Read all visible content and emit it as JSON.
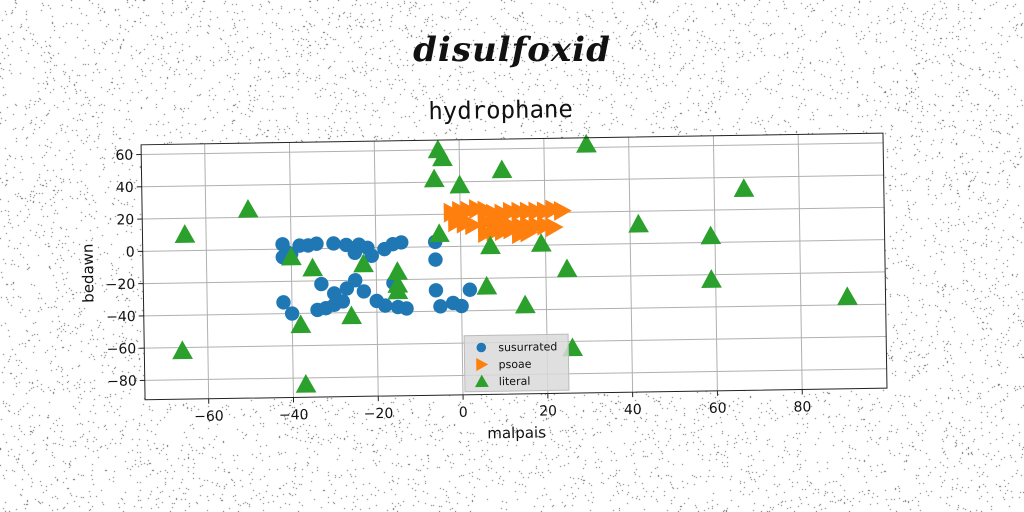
{
  "figure": {
    "suptitle": "disulfoxid"
  },
  "chart_data": {
    "type": "scatter",
    "title": "hydrophane",
    "xlabel": "malpais",
    "ylabel": "bedawn",
    "xlim": [
      -75,
      100
    ],
    "ylim": [
      -92,
      66
    ],
    "xticks": [
      -60,
      -40,
      -20,
      0,
      20,
      40,
      60,
      80
    ],
    "yticks": [
      60,
      40,
      20,
      0,
      -20,
      -40,
      -60,
      -80
    ],
    "grid": true,
    "legend_position": "lower center",
    "series": [
      {
        "name": "susurrated",
        "marker": "circle",
        "color": "#1f77b4",
        "points": [
          [
            -42,
            3
          ],
          [
            -41,
            -2
          ],
          [
            -40,
            -3
          ],
          [
            -42,
            -5
          ],
          [
            -38,
            2
          ],
          [
            -36,
            2
          ],
          [
            -34,
            3
          ],
          [
            -30,
            3
          ],
          [
            -27,
            2
          ],
          [
            -24,
            2
          ],
          [
            -22,
            0
          ],
          [
            -25,
            -3
          ],
          [
            -18,
            -1
          ],
          [
            -16,
            2
          ],
          [
            -14,
            3
          ],
          [
            -6,
            3
          ],
          [
            -6,
            -8
          ],
          [
            -42,
            -33
          ],
          [
            -40,
            -40
          ],
          [
            -34,
            -38
          ],
          [
            -32,
            -37
          ],
          [
            -30,
            -35
          ],
          [
            -28,
            -33
          ],
          [
            -30,
            -28
          ],
          [
            -27,
            -25
          ],
          [
            -25,
            -20
          ],
          [
            -23,
            -27
          ],
          [
            -20,
            -33
          ],
          [
            -18,
            -36
          ],
          [
            -15,
            -37
          ],
          [
            -13,
            -38
          ],
          [
            -16,
            -22
          ],
          [
            -6,
            -27
          ],
          [
            -5,
            -37
          ],
          [
            -2,
            -35
          ],
          [
            0,
            -37
          ],
          [
            2,
            -27
          ],
          [
            -33,
            -22
          ],
          [
            -21,
            -5
          ]
        ]
      },
      {
        "name": "psoae",
        "marker": "triangle-right",
        "color": "#ff7f0e",
        "points": [
          [
            -2,
            21
          ],
          [
            0,
            22
          ],
          [
            2,
            22
          ],
          [
            4,
            23
          ],
          [
            6,
            22
          ],
          [
            8,
            20
          ],
          [
            10,
            20
          ],
          [
            12,
            21
          ],
          [
            14,
            21
          ],
          [
            16,
            21
          ],
          [
            18,
            21
          ],
          [
            20,
            21
          ],
          [
            22,
            22
          ],
          [
            24,
            21
          ],
          [
            -1,
            15
          ],
          [
            1,
            14
          ],
          [
            3,
            13
          ],
          [
            6,
            15
          ],
          [
            8,
            14
          ],
          [
            10,
            13
          ],
          [
            12,
            12
          ],
          [
            14,
            12
          ],
          [
            16,
            12
          ],
          [
            18,
            12
          ],
          [
            20,
            12
          ],
          [
            22,
            11
          ],
          [
            6,
            8
          ],
          [
            8,
            9
          ],
          [
            10,
            9
          ],
          [
            12,
            10
          ],
          [
            14,
            7
          ],
          [
            16,
            8
          ]
        ]
      },
      {
        "name": "literal",
        "marker": "triangle-up",
        "color": "#2ca02c",
        "points": [
          [
            -5,
            60
          ],
          [
            -4,
            55
          ],
          [
            -6,
            42
          ],
          [
            0,
            38
          ],
          [
            10,
            47
          ],
          [
            30,
            62
          ],
          [
            -65,
            10
          ],
          [
            -50,
            25
          ],
          [
            67,
            33
          ],
          [
            42,
            12
          ],
          [
            59,
            4
          ],
          [
            -5,
            8
          ],
          [
            7,
            0
          ],
          [
            19,
            1
          ],
          [
            -40,
            -5
          ],
          [
            -35,
            -12
          ],
          [
            -23,
            -10
          ],
          [
            -15,
            -15
          ],
          [
            25,
            -15
          ],
          [
            -15,
            -23
          ],
          [
            -15,
            -27
          ],
          [
            6,
            -25
          ],
          [
            15,
            -37
          ],
          [
            -38,
            -47
          ],
          [
            -26,
            -42
          ],
          [
            59,
            -23
          ],
          [
            91,
            -35
          ],
          [
            -66,
            -62
          ],
          [
            26,
            -64
          ],
          [
            -37,
            -84
          ]
        ]
      }
    ]
  }
}
